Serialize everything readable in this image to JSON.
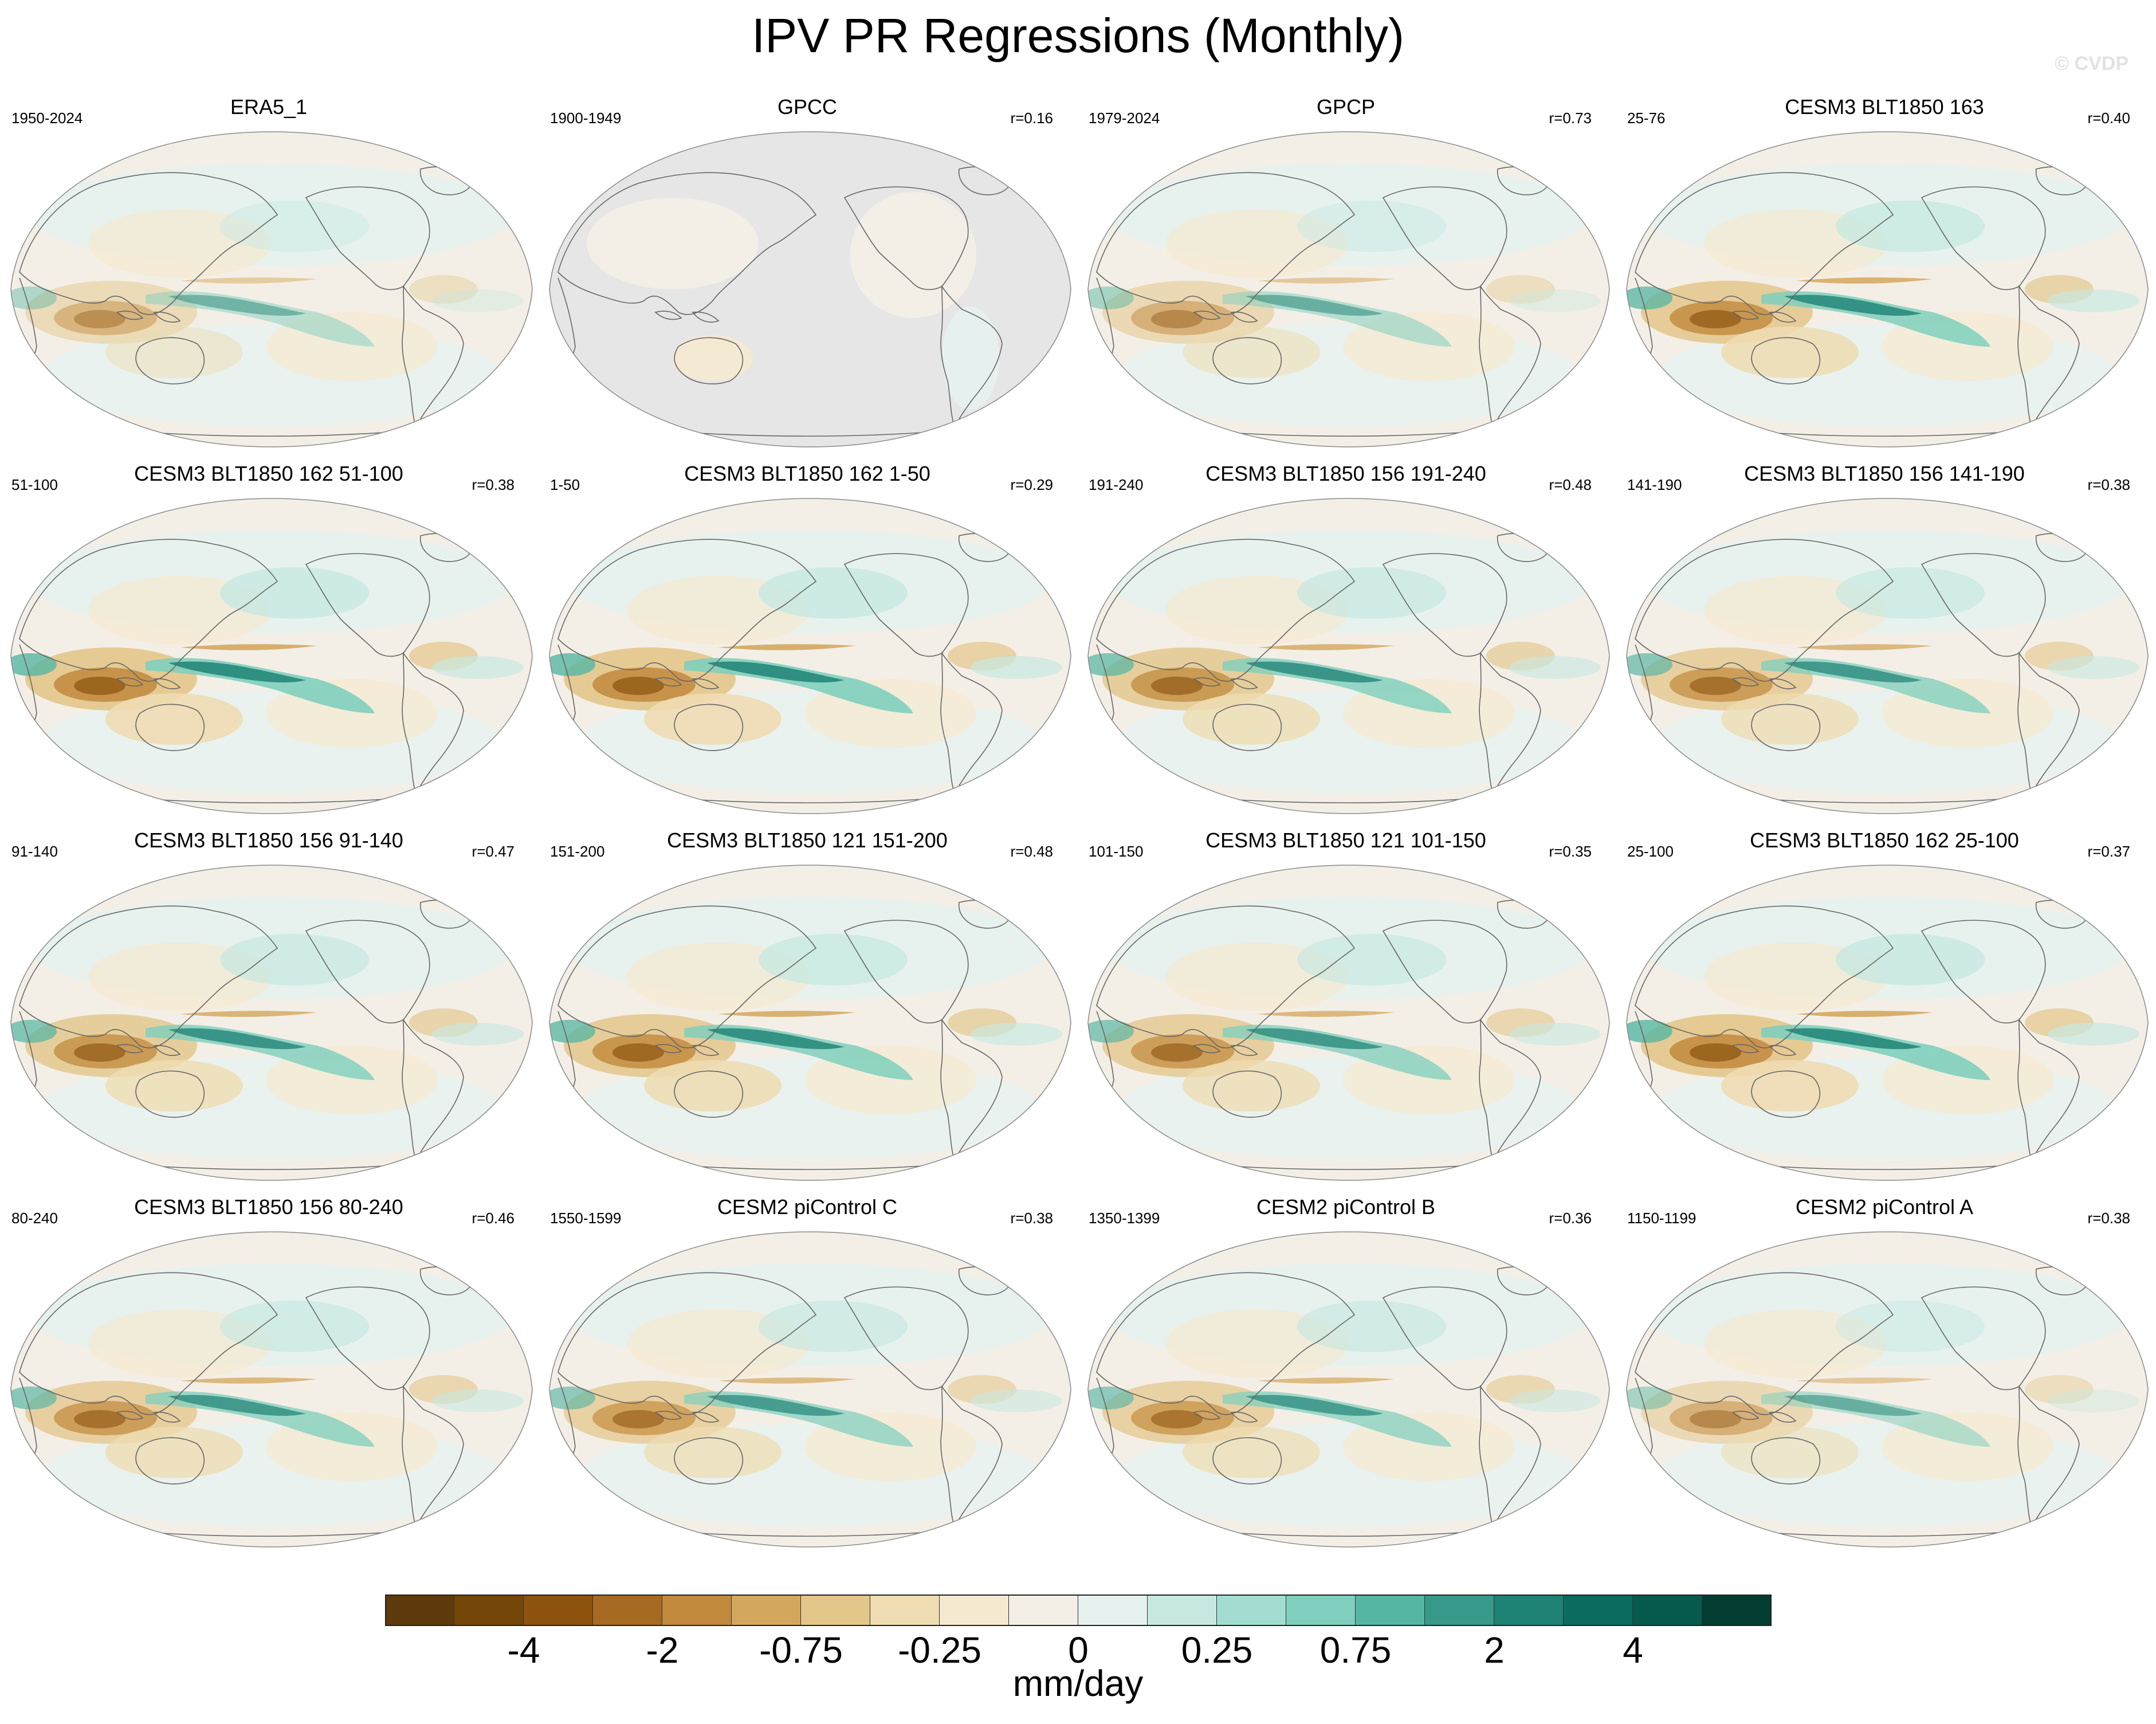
{
  "title": "IPV PR Regressions (Monthly)",
  "watermark": "© CVDP",
  "colors": {
    "land_line": "#666666",
    "background_missing": "#e6e6e6",
    "globe_edge": "#8a8a8a"
  },
  "panels": [
    {
      "title": "ERA5_1",
      "period": "1950-2024",
      "corr": "",
      "strength": 0.55,
      "missing": false
    },
    {
      "title": "GPCC",
      "period": "1900-1949",
      "corr": "r=0.16",
      "strength": 0.25,
      "missing": true
    },
    {
      "title": "GPCP",
      "period": "1979-2024",
      "corr": "r=0.73",
      "strength": 0.6,
      "missing": false
    },
    {
      "title": "CESM3 BLT1850 163",
      "period": "25-76",
      "corr": "r=0.40",
      "strength": 0.95,
      "missing": false
    },
    {
      "title": "CESM3 BLT1850 162 51-100",
      "period": "51-100",
      "corr": "r=0.38",
      "strength": 1.0,
      "missing": false
    },
    {
      "title": "CESM3 BLT1850 162 1-50",
      "period": "1-50",
      "corr": "r=0.29",
      "strength": 1.0,
      "missing": false
    },
    {
      "title": "CESM3 BLT1850 156 191-240",
      "period": "191-240",
      "corr": "r=0.48",
      "strength": 0.9,
      "missing": false
    },
    {
      "title": "CESM3 BLT1850 156 141-190",
      "period": "141-190",
      "corr": "r=0.38",
      "strength": 0.85,
      "missing": false
    },
    {
      "title": "CESM3 BLT1850 156 91-140",
      "period": "91-140",
      "corr": "r=0.47",
      "strength": 0.9,
      "missing": false
    },
    {
      "title": "CESM3 BLT1850 121 151-200",
      "period": "151-200",
      "corr": "r=0.48",
      "strength": 0.95,
      "missing": false
    },
    {
      "title": "CESM3 BLT1850 121 101-150",
      "period": "101-150",
      "corr": "r=0.35",
      "strength": 0.85,
      "missing": false
    },
    {
      "title": "CESM3 BLT1850 162 25-100",
      "period": "25-100",
      "corr": "r=0.37",
      "strength": 1.0,
      "missing": false
    },
    {
      "title": "CESM3 BLT1850 156 80-240",
      "period": "80-240",
      "corr": "r=0.46",
      "strength": 0.85,
      "missing": false
    },
    {
      "title": "CESM2 piControl C",
      "period": "1550-1599",
      "corr": "r=0.38",
      "strength": 0.8,
      "missing": false
    },
    {
      "title": "CESM2 piControl B",
      "period": "1350-1399",
      "corr": "r=0.36",
      "strength": 0.8,
      "missing": false
    },
    {
      "title": "CESM2 piControl A",
      "period": "1150-1199",
      "corr": "r=0.38",
      "strength": 0.6,
      "missing": false
    }
  ],
  "chart_data": {
    "type": "heatmap",
    "title": "IPV PR Regressions (Monthly)",
    "units": "mm/day",
    "colorbar": {
      "tick_labels": [
        "-4",
        "-2",
        "-0.75",
        "-0.25",
        "0",
        "0.25",
        "0.75",
        "2",
        "4"
      ],
      "colors": [
        "#5e3a0c",
        "#744608",
        "#8c520e",
        "#a76a22",
        "#c28a3d",
        "#d4a75e",
        "#e3c68a",
        "#efdcb2",
        "#f5e9d0",
        "#f4efe6",
        "#e6f2f0",
        "#c7e8e1",
        "#a3ddd1",
        "#7fcfbe",
        "#56b6a4",
        "#37998a",
        "#1e8274",
        "#0b6b5e",
        "#065a4e",
        "#033c31"
      ]
    },
    "series": [
      {
        "name": "ERA5_1",
        "period": "1950-2024",
        "r": null
      },
      {
        "name": "GPCC",
        "period": "1900-1949",
        "r": 0.16
      },
      {
        "name": "GPCP",
        "period": "1979-2024",
        "r": 0.73
      },
      {
        "name": "CESM3 BLT1850 163",
        "period": "25-76",
        "r": 0.4
      },
      {
        "name": "CESM3 BLT1850 162 51-100",
        "period": "51-100",
        "r": 0.38
      },
      {
        "name": "CESM3 BLT1850 162 1-50",
        "period": "1-50",
        "r": 0.29
      },
      {
        "name": "CESM3 BLT1850 156 191-240",
        "period": "191-240",
        "r": 0.48
      },
      {
        "name": "CESM3 BLT1850 156 141-190",
        "period": "141-190",
        "r": 0.38
      },
      {
        "name": "CESM3 BLT1850 156 91-140",
        "period": "91-140",
        "r": 0.47
      },
      {
        "name": "CESM3 BLT1850 121 151-200",
        "period": "151-200",
        "r": 0.48
      },
      {
        "name": "CESM3 BLT1850 121 101-150",
        "period": "101-150",
        "r": 0.35
      },
      {
        "name": "CESM3 BLT1850 162 25-100",
        "period": "25-100",
        "r": 0.37
      },
      {
        "name": "CESM3 BLT1850 156 80-240",
        "period": "80-240",
        "r": 0.46
      },
      {
        "name": "CESM2 piControl C",
        "period": "1550-1599",
        "r": 0.38
      },
      {
        "name": "CESM2 piControl B",
        "period": "1350-1399",
        "r": 0.36
      },
      {
        "name": "CESM2 piControl A",
        "period": "1150-1199",
        "r": 0.38
      }
    ]
  }
}
